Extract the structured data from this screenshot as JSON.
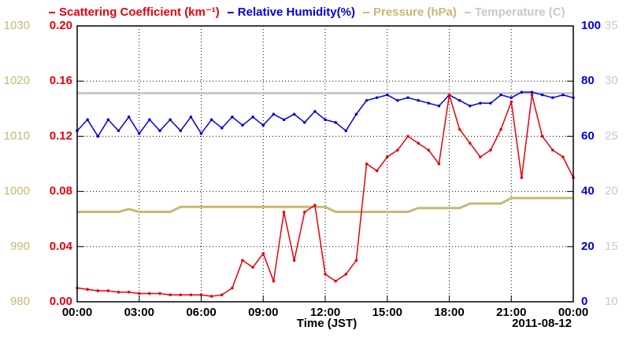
{
  "chart_data": {
    "type": "line",
    "xlabel": "Time (JST)",
    "annotation": "2011-08-12",
    "xlim": [
      0,
      24
    ],
    "xticks": [
      {
        "value": 0,
        "label": "00:00"
      },
      {
        "value": 3,
        "label": "03:00"
      },
      {
        "value": 6,
        "label": "06:00"
      },
      {
        "value": 9,
        "label": "09:00"
      },
      {
        "value": 12,
        "label": "12:00"
      },
      {
        "value": 15,
        "label": "15:00"
      },
      {
        "value": 18,
        "label": "18:00"
      },
      {
        "value": 21,
        "label": "21:00"
      },
      {
        "value": 24,
        "label": "00:00"
      }
    ],
    "ylim": [
      0,
      0.2
    ],
    "yticks": [
      {
        "value": 0,
        "label": "0.00"
      },
      0.04,
      0.08,
      0.12,
      0.16,
      {
        "value": 0.2,
        "label": "0.20"
      }
    ],
    "y2lim": [
      0,
      100
    ],
    "y2ticks": [
      0,
      20,
      40,
      60,
      80,
      100
    ],
    "y3lim": [
      980,
      1030
    ],
    "y3ticks": [
      980,
      990,
      1000,
      1010,
      1020,
      1030
    ],
    "y4lim": [
      10,
      35
    ],
    "y4ticks": [
      10,
      15,
      20,
      25,
      30,
      35
    ],
    "grid": true,
    "x": [
      0,
      0.5,
      1,
      1.5,
      2,
      2.5,
      3,
      3.5,
      4,
      4.5,
      5,
      5.5,
      6,
      6.5,
      7,
      7.5,
      8,
      8.5,
      9,
      9.5,
      10,
      10.5,
      11,
      11.5,
      12,
      12.5,
      13,
      13.5,
      14,
      14.5,
      15,
      15.5,
      16,
      16.5,
      17,
      17.5,
      18,
      18.5,
      19,
      19.5,
      20,
      20.5,
      21,
      21.5,
      22,
      22.5,
      23,
      23.5,
      24
    ],
    "series": [
      {
        "name": "Scattering Coefficient (km⁻¹)",
        "color": "#e8000b",
        "axis": "y",
        "markers": true,
        "values": [
          0.01,
          0.009,
          0.008,
          0.008,
          0.007,
          0.007,
          0.006,
          0.006,
          0.006,
          0.005,
          0.005,
          0.005,
          0.005,
          0.004,
          0.005,
          0.01,
          0.03,
          0.025,
          0.035,
          0.015,
          0.065,
          0.03,
          0.065,
          0.07,
          0.02,
          0.015,
          0.02,
          0.03,
          0.1,
          0.095,
          0.105,
          0.11,
          0.12,
          0.115,
          0.11,
          0.1,
          0.15,
          0.125,
          0.115,
          0.105,
          0.11,
          0.125,
          0.145,
          0.09,
          0.15,
          0.12,
          0.11,
          0.105,
          0.09
        ]
      },
      {
        "name": "Relative Humidity(%)",
        "color": "#0000e0",
        "axis": "y2",
        "markers": true,
        "values": [
          62,
          66,
          60,
          66,
          62,
          67,
          61,
          66,
          62,
          66,
          62,
          67,
          61,
          66,
          63,
          67,
          64,
          67,
          64,
          68,
          66,
          68,
          65,
          69,
          66,
          65,
          62,
          68,
          73,
          74,
          75,
          73,
          74,
          73,
          72,
          71,
          75,
          73,
          71,
          72,
          72,
          75,
          74,
          76,
          76,
          75,
          74,
          75,
          74
        ]
      },
      {
        "name": "Pressure (hPa)",
        "color": "#c8b870",
        "axis": "y3",
        "markers": false,
        "values": [
          996.3,
          996.3,
          996.3,
          996.3,
          996.3,
          996.8,
          996.3,
          996.3,
          996.3,
          996.3,
          997.2,
          997.2,
          997.2,
          997.2,
          997.2,
          997.2,
          997.2,
          997.2,
          997.2,
          997.2,
          997.2,
          997.2,
          997.2,
          997.2,
          997.2,
          996.3,
          996.3,
          996.3,
          996.3,
          996.3,
          996.3,
          996.3,
          996.3,
          997.0,
          997.0,
          997.0,
          997.0,
          997.0,
          997.8,
          997.8,
          997.8,
          997.8,
          998.8,
          998.8,
          998.8,
          998.8,
          998.8,
          998.8,
          998.8
        ]
      },
      {
        "name": "Temperature (C)",
        "color": "#c8c8c8",
        "axis": "y4",
        "markers": false,
        "values": [
          28.9,
          28.9,
          28.9,
          28.9,
          28.9,
          28.9,
          28.9,
          28.9,
          28.9,
          28.9,
          28.9,
          28.9,
          28.9,
          28.9,
          28.9,
          28.9,
          28.9,
          28.9,
          28.9,
          28.9,
          28.9,
          28.9,
          28.9,
          28.9,
          28.9,
          28.9,
          28.9,
          28.9,
          28.9,
          28.9,
          28.9,
          28.9,
          28.9,
          28.9,
          28.9,
          28.9,
          28.9,
          28.9,
          28.9,
          28.9,
          28.9,
          28.9,
          28.9,
          28.9,
          28.9,
          28.9,
          28.9,
          28.9,
          28.9
        ]
      }
    ]
  }
}
